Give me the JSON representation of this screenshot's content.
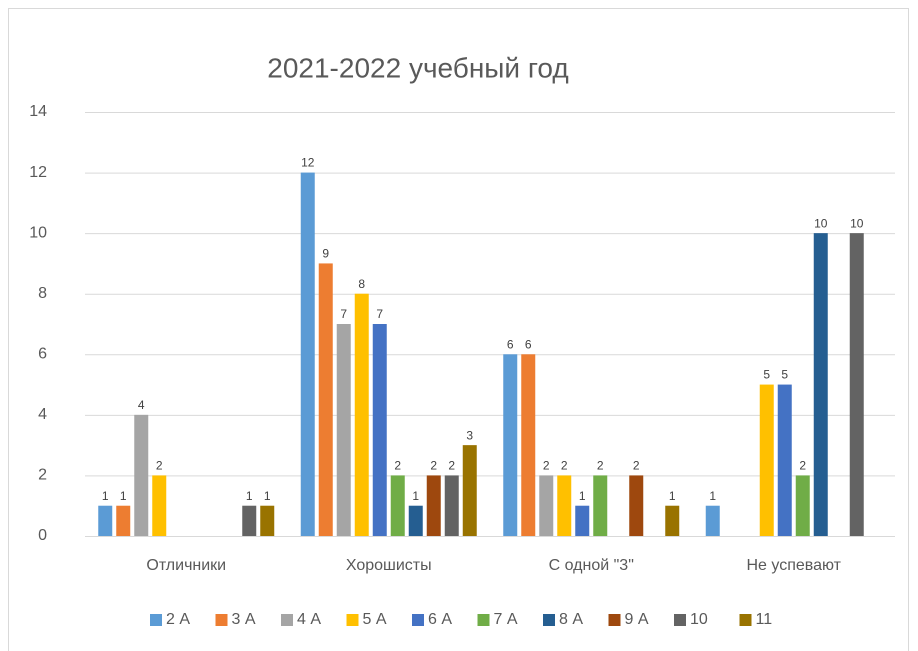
{
  "chart_data": {
    "type": "bar",
    "title": "2021-2022 учебный год",
    "categories": [
      "Отличники",
      "Хорошисты",
      "С одной \"3\"",
      "Не успевают"
    ],
    "series": [
      {
        "name": "2 А",
        "color": "#5b9bd5",
        "values": [
          1,
          12,
          6,
          1
        ]
      },
      {
        "name": "3 А",
        "color": "#ed7d31",
        "values": [
          1,
          9,
          6,
          null
        ]
      },
      {
        "name": "4 А",
        "color": "#a5a5a5",
        "values": [
          4,
          7,
          2,
          null
        ]
      },
      {
        "name": "5 А",
        "color": "#ffc000",
        "values": [
          2,
          8,
          2,
          5
        ]
      },
      {
        "name": "6 А",
        "color": "#4472c4",
        "values": [
          null,
          7,
          1,
          5
        ]
      },
      {
        "name": "7 А",
        "color": "#70ad47",
        "values": [
          null,
          2,
          2,
          2
        ]
      },
      {
        "name": "8 А",
        "color": "#255e91",
        "values": [
          null,
          1,
          null,
          10
        ]
      },
      {
        "name": "9 А",
        "color": "#9e480e",
        "values": [
          null,
          2,
          2,
          null
        ]
      },
      {
        "name": "10",
        "color": "#636363",
        "values": [
          1,
          2,
          null,
          10
        ]
      },
      {
        "name": "11",
        "color": "#997300",
        "values": [
          1,
          3,
          1,
          null
        ]
      }
    ],
    "ylim": [
      0,
      14
    ],
    "yticks": [
      0,
      2,
      4,
      6,
      8,
      10,
      12,
      14
    ],
    "grid": true,
    "legend": "bottom"
  }
}
